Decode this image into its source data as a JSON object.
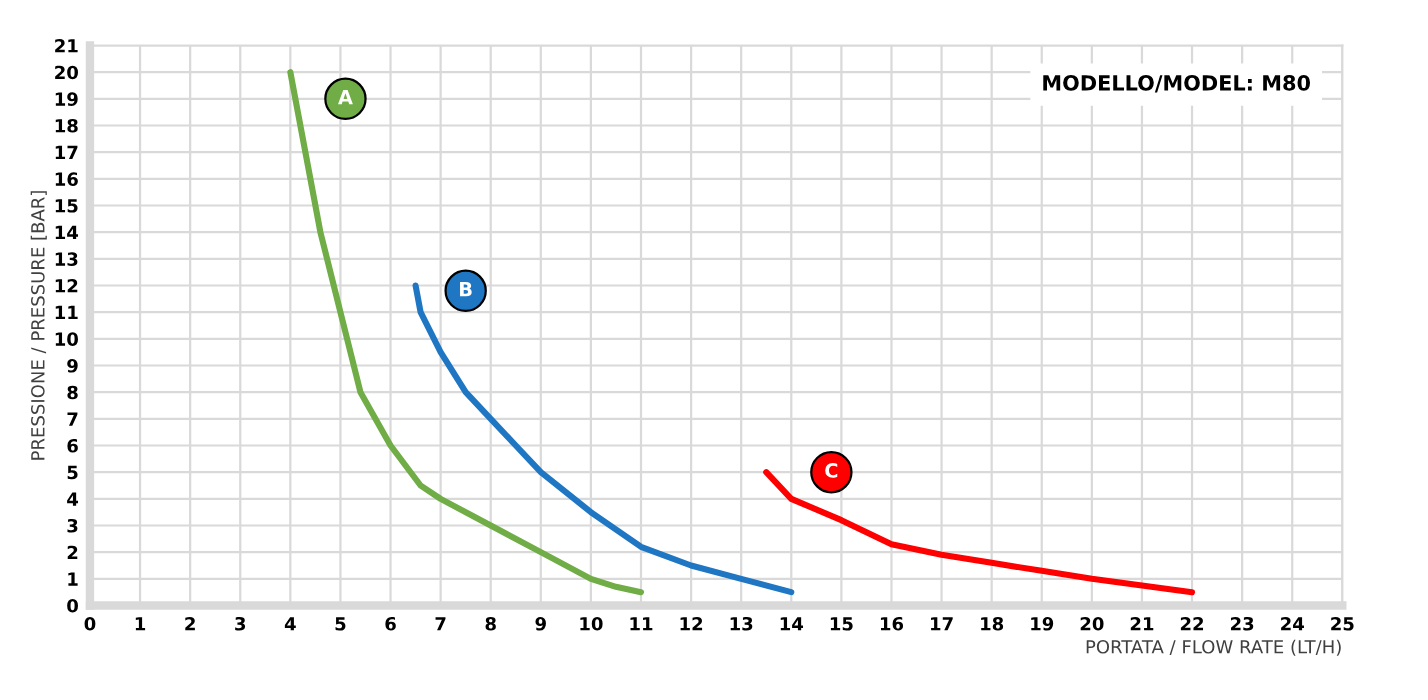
{
  "chart_data": {
    "type": "line",
    "title": "MODELLO/MODEL: M80",
    "xlabel": "PORTATA / FLOW RATE (LT/H)",
    "ylabel": "PRESSIONE / PRESSURE [BAR]",
    "series": [
      {
        "color": "#70ad47",
        "x": [
          4,
          4.3,
          4.6,
          5,
          5.4,
          6,
          6.6,
          7,
          8,
          9,
          10,
          10.5,
          11
        ],
        "values": [
          20,
          17,
          14,
          11,
          8,
          6,
          4.5,
          4,
          3,
          2,
          1,
          0.7,
          0.5
        ]
      },
      {
        "color": "#1f77c4",
        "x": [
          6.5,
          6.6,
          7,
          7.5,
          8,
          8.5,
          9,
          10,
          11,
          12,
          13,
          14
        ],
        "values": [
          12,
          11,
          9.5,
          8,
          7,
          6,
          5,
          3.5,
          2.2,
          1.5,
          1,
          0.5
        ]
      },
      {
        "color": "#ff0000",
        "x": [
          13.5,
          14,
          15,
          16,
          17,
          18,
          19,
          20,
          21,
          22
        ],
        "values": [
          5,
          4,
          3.2,
          2.3,
          1.9,
          1.6,
          1.3,
          1,
          0.75,
          0.5
        ]
      }
    ],
    "annotations": [
      {
        "text": "A",
        "x": 5.1,
        "y": 19
      },
      {
        "text": "B",
        "x": 7.5,
        "y": 11.8
      },
      {
        "text": "C",
        "x": 14.8,
        "y": 5
      }
    ],
    "xlim": [
      0,
      25
    ],
    "ylim": [
      0,
      21
    ],
    "xticks": [
      0,
      1,
      2,
      3,
      4,
      5,
      6,
      7,
      8,
      9,
      10,
      11,
      12,
      13,
      14,
      15,
      16,
      17,
      18,
      19,
      20,
      21,
      22,
      23,
      24,
      25
    ],
    "yticks": [
      0,
      1,
      2,
      3,
      4,
      5,
      6,
      7,
      8,
      9,
      10,
      11,
      12,
      13,
      14,
      15,
      16,
      17,
      18,
      19,
      20,
      21
    ],
    "grid": true,
    "line_style": "solid"
  }
}
